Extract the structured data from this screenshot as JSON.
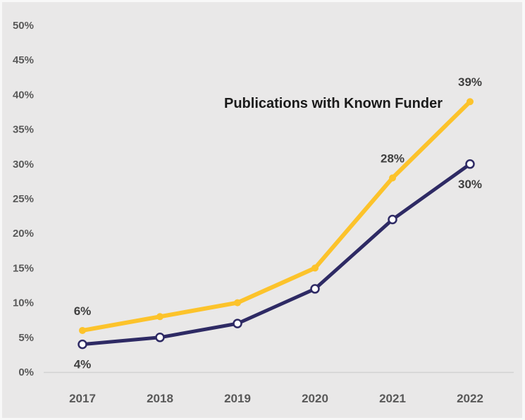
{
  "chart_data": {
    "type": "line",
    "title": "Publications with Known Funder",
    "categories": [
      "2017",
      "2018",
      "2019",
      "2020",
      "2021",
      "2022"
    ],
    "series": [
      {
        "name": "Publications with Known Funder",
        "color": "#FCC32B",
        "marker": "filled-circle",
        "values": [
          6,
          8,
          10,
          15,
          28,
          39
        ]
      },
      {
        "name": "",
        "color": "#2E2A64",
        "marker": "open-circle",
        "values": [
          4,
          5,
          7,
          12,
          22,
          30
        ]
      }
    ],
    "ylim": [
      0,
      50
    ],
    "y_ticks": [
      "0%",
      "5%",
      "10%",
      "15%",
      "20%",
      "25%",
      "30%",
      "35%",
      "40%",
      "45%",
      "50%"
    ],
    "xlabel": "",
    "ylabel": "",
    "grid": false,
    "legend": "none",
    "data_labels": [
      {
        "series": 0,
        "category": "2017",
        "text": "6%",
        "placement": "above"
      },
      {
        "series": 1,
        "category": "2017",
        "text": "4%",
        "placement": "below"
      },
      {
        "series": 0,
        "category": "2021",
        "text": "28%",
        "placement": "above"
      },
      {
        "series": 0,
        "category": "2022",
        "text": "39%",
        "placement": "above"
      },
      {
        "series": 1,
        "category": "2022",
        "text": "30%",
        "placement": "below"
      }
    ],
    "colors": {
      "background": "#E9E8E8",
      "border": "#F8F8F8",
      "axis_line": "#D2D2D2",
      "tick_label": "#595959",
      "data_label": "#3F3F3F",
      "title": "#1A1A1A"
    }
  }
}
